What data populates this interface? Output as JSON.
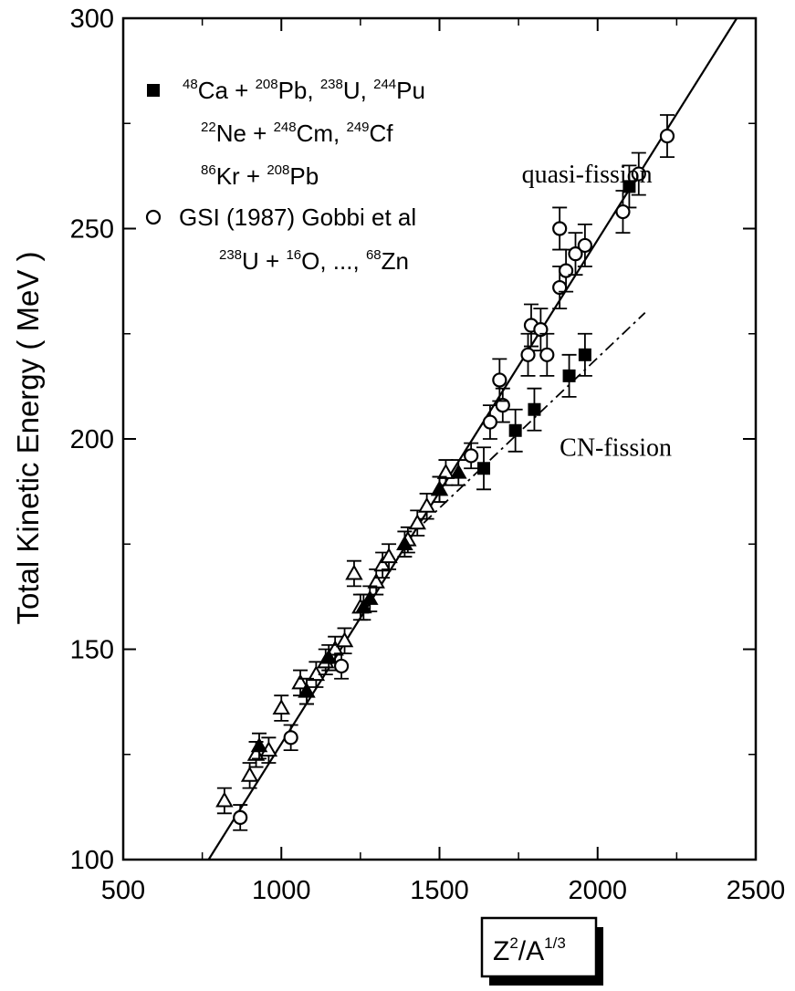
{
  "chart_data": {
    "type": "scatter",
    "ylabel": "Total Kinetic Energy ( MeV )",
    "xlabel": "Z2/A1/3",
    "xlim": [
      500,
      2500
    ],
    "ylim": [
      100,
      300
    ],
    "x_ticks": [
      "500",
      "1000",
      "1500",
      "2000",
      "2500"
    ],
    "y_ticks": [
      "100",
      "150",
      "200",
      "250",
      "300"
    ],
    "grid": false,
    "legend_position": "top-left",
    "legend": {
      "squares": {
        "lines": [
          [
            [
              "48",
              "Ca + "
            ],
            [
              "208",
              "Pb, "
            ],
            [
              "238",
              "U, "
            ],
            [
              "244",
              "Pu"
            ]
          ],
          [
            [
              "22",
              "Ne + "
            ],
            [
              "248",
              "Cm, "
            ],
            [
              "249",
              "Cf"
            ]
          ],
          [
            [
              "86",
              "Kr + "
            ],
            [
              "208",
              "Pb"
            ]
          ]
        ]
      },
      "circles": {
        "lines": [
          [
            [
              "",
              "GSI (1987) Gobbi et al"
            ]
          ],
          [
            [
              "238",
              "U + "
            ],
            [
              "16",
              "O, ..., "
            ],
            [
              "68",
              "Zn"
            ]
          ]
        ]
      }
    },
    "annotations": [
      {
        "text": "quasi-fission",
        "x": 1760,
        "y": 261
      },
      {
        "text": "CN-fission",
        "x": 1880,
        "y": 196
      }
    ],
    "fit_lines": [
      {
        "name": "quasi-fission-fit",
        "style": "solid",
        "points": [
          [
            770,
            100
          ],
          [
            2440,
            300
          ]
        ]
      },
      {
        "name": "cn-fission-fit",
        "style": "dashdot",
        "points": [
          [
            1450,
            180
          ],
          [
            2150,
            230
          ]
        ]
      }
    ],
    "series": [
      {
        "marker": "open-triangle",
        "x": [
          820,
          900,
          920,
          960,
          1000,
          1060,
          1080,
          1110,
          1140,
          1170,
          1200,
          1230,
          1250,
          1300,
          1320,
          1340,
          1400,
          1430,
          1460,
          1500,
          1520
        ],
        "y": [
          114,
          120,
          125,
          126,
          136,
          142,
          140,
          144,
          147,
          150,
          152,
          168,
          160,
          166,
          170,
          172,
          176,
          180,
          184,
          188,
          192
        ],
        "err": [
          3,
          3,
          3,
          3,
          3,
          3,
          3,
          3,
          3,
          3,
          3,
          3,
          3,
          3,
          3,
          3,
          3,
          3,
          3,
          3,
          3
        ]
      },
      {
        "marker": "filled-triangle",
        "x": [
          930,
          1080,
          1150,
          1260,
          1280,
          1390,
          1500,
          1560
        ],
        "y": [
          127,
          140,
          148,
          160,
          162,
          175,
          188,
          192
        ],
        "err": [
          3,
          3,
          3,
          3,
          3,
          3,
          3,
          3
        ]
      },
      {
        "marker": "filled-square",
        "x": [
          1640,
          1740,
          1800,
          1910,
          1960,
          2100
        ],
        "y": [
          193,
          202,
          207,
          215,
          220,
          260
        ],
        "err": [
          5,
          5,
          5,
          5,
          5,
          5
        ]
      },
      {
        "marker": "open-circle",
        "x": [
          870,
          1030,
          1190,
          1600,
          1660,
          1700,
          1690,
          1780,
          1790,
          1820,
          1840,
          1880,
          1880,
          1900,
          1930,
          1960,
          2080,
          2130,
          2220
        ],
        "y": [
          110,
          129,
          146,
          196,
          204,
          208,
          214,
          220,
          227,
          226,
          220,
          236,
          250,
          240,
          244,
          246,
          254,
          263,
          272
        ],
        "err": [
          3,
          3,
          3,
          3,
          4,
          4,
          5,
          5,
          5,
          5,
          5,
          5,
          5,
          5,
          5,
          5,
          5,
          5,
          5
        ]
      }
    ]
  }
}
